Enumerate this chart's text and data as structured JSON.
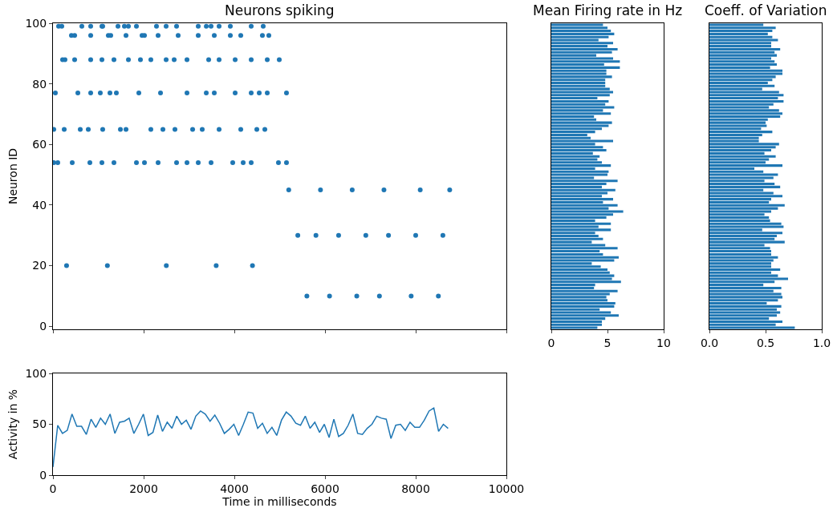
{
  "chart_data": [
    {
      "type": "scatter",
      "title": "Neurons spiking",
      "ylabel": "Neuron ID",
      "color": "#1f77b4",
      "marker": "circle",
      "x": [
        124,
        195,
        637,
        832,
        1080,
        1097,
        1434,
        1575,
        1664,
        1841,
        2283,
        2496,
        2726,
        3204,
        3381,
        3487,
        3664,
        3912,
        4372,
        4637,
        407,
        478,
        832,
        1221,
        1274,
        1611,
        1965,
        2018,
        2319,
        2761,
        3204,
        3558,
        3912,
        4142,
        4619,
        4761,
        212,
        265,
        478,
        832,
        1080,
        1345,
        1664,
        1929,
        2159,
        2496,
        2673,
        2956,
        3434,
        3664,
        4018,
        4372,
        4726,
        4991,
        53,
        549,
        832,
        1044,
        1257,
        1398,
        1894,
        2372,
        2956,
        3381,
        3558,
        4018,
        4372,
        4549,
        4726,
        5150,
        18,
        248,
        602,
        779,
        1097,
        1487,
        1611,
        2159,
        2425,
        2690,
        3080,
        3292,
        3664,
        4142,
        4496,
        4673,
        18,
        106,
        425,
        814,
        1080,
        1345,
        1841,
        2018,
        2319,
        2726,
        2956,
        3204,
        3487,
        3965,
        4195,
        4372,
        4973,
        5150,
        5400,
        5800,
        6300,
        6900,
        7400,
        8000,
        8600,
        5600,
        6100,
        6700,
        7200,
        7900,
        8500,
        5200,
        5900,
        6600,
        7300,
        8100,
        8750,
        300,
        1200,
        2500,
        3600,
        4400
      ],
      "values": [
        99,
        99,
        99,
        99,
        99,
        99,
        99,
        99,
        99,
        99,
        99,
        99,
        99,
        99,
        99,
        99,
        99,
        99,
        99,
        99,
        96,
        96,
        96,
        96,
        96,
        96,
        96,
        96,
        96,
        96,
        96,
        96,
        96,
        96,
        96,
        96,
        88,
        88,
        88,
        88,
        88,
        88,
        88,
        88,
        88,
        88,
        88,
        88,
        88,
        88,
        88,
        88,
        88,
        88,
        77,
        77,
        77,
        77,
        77,
        77,
        77,
        77,
        77,
        77,
        77,
        77,
        77,
        77,
        77,
        77,
        65,
        65,
        65,
        65,
        65,
        65,
        65,
        65,
        65,
        65,
        65,
        65,
        65,
        65,
        65,
        65,
        54,
        54,
        54,
        54,
        54,
        54,
        54,
        54,
        54,
        54,
        54,
        54,
        54,
        54,
        54,
        54,
        54,
        54,
        30,
        30,
        30,
        30,
        30,
        30,
        30,
        10,
        10,
        10,
        10,
        10,
        10,
        45,
        45,
        45,
        45,
        45,
        45,
        20,
        20,
        20,
        20,
        20
      ],
      "xlim": [
        0,
        10000
      ],
      "xticks": [
        {
          "value": 0,
          "label": null
        },
        {
          "value": 2000,
          "label": null
        },
        {
          "value": 4000,
          "label": null
        },
        {
          "value": 6000,
          "label": null
        },
        {
          "value": 8000,
          "label": null
        },
        {
          "value": 10000,
          "label": null
        }
      ],
      "ylim": [
        -1,
        100
      ],
      "yticks": [
        0,
        20,
        40,
        60,
        80,
        100
      ],
      "tick_labels": "y"
    },
    {
      "type": "bar",
      "orientation": "horizontal",
      "title": "Mean Firing rate in Hz",
      "color": "#1f77b4",
      "categories": [
        null,
        null,
        null,
        null,
        null,
        null,
        null,
        null,
        null,
        null,
        null,
        null,
        null,
        null,
        null,
        null,
        null,
        null,
        null,
        null,
        null,
        null,
        null,
        null,
        null,
        null,
        null,
        null,
        null,
        null,
        null,
        null,
        null,
        null,
        null,
        null,
        null,
        null,
        null,
        null,
        null,
        null,
        null,
        null,
        null,
        null,
        null,
        null,
        null,
        null,
        null,
        null,
        null,
        null,
        null,
        null,
        null,
        null,
        null,
        null,
        null,
        null,
        null,
        null,
        null,
        null,
        null,
        null,
        null,
        null,
        null,
        null,
        null,
        null,
        null,
        null,
        null,
        null,
        null,
        null,
        null,
        null,
        null,
        null,
        null,
        null,
        null,
        null,
        null,
        null,
        null,
        null,
        null,
        null,
        null,
        null,
        null,
        null,
        null,
        null
      ],
      "values": [
        4.6,
        5.0,
        5.3,
        5.6,
        5.1,
        4.2,
        5.5,
        5.0,
        5.9,
        5.4,
        4.0,
        5.5,
        6.1,
        4.7,
        6.1,
        4.9,
        4.9,
        5.4,
        4.8,
        4.8,
        4.8,
        5.2,
        5.5,
        5.2,
        4.1,
        5.1,
        4.8,
        5.6,
        4.6,
        5.3,
        3.8,
        4.0,
        5.4,
        5.1,
        4.5,
        3.9,
        3.2,
        3.5,
        5.5,
        3.9,
        4.6,
        4.9,
        3.7,
        4.3,
        4.1,
        4.5,
        5.3,
        3.9,
        5.1,
        5.0,
        3.8,
        5.9,
        4.9,
        4.5,
        5.7,
        5.0,
        4.5,
        5.5,
        4.6,
        5.9,
        5.1,
        6.4,
        5.5,
        4.9,
        3.9,
        5.3,
        4.2,
        5.3,
        3.9,
        4.2,
        4.6,
        3.6,
        4.8,
        5.9,
        4.3,
        4.6,
        6.0,
        5.6,
        3.6,
        4.4,
        5.0,
        5.2,
        5.6,
        5.4,
        6.2,
        3.9,
        3.8,
        5.9,
        5.2,
        4.9,
        5.0,
        5.7,
        5.6,
        4.3,
        5.3,
        6.0,
        4.8,
        4.5,
        4.5,
        4.1
      ],
      "xlim": [
        0,
        10
      ],
      "xticks": [
        0,
        5,
        10
      ],
      "tick_labels": "x"
    },
    {
      "type": "bar",
      "orientation": "horizontal",
      "title": "Coeff. of Variation",
      "color": "#1f77b4",
      "categories": [
        null,
        null,
        null,
        null,
        null,
        null,
        null,
        null,
        null,
        null,
        null,
        null,
        null,
        null,
        null,
        null,
        null,
        null,
        null,
        null,
        null,
        null,
        null,
        null,
        null,
        null,
        null,
        null,
        null,
        null,
        null,
        null,
        null,
        null,
        null,
        null,
        null,
        null,
        null,
        null,
        null,
        null,
        null,
        null,
        null,
        null,
        null,
        null,
        null,
        null,
        null,
        null,
        null,
        null,
        null,
        null,
        null,
        null,
        null,
        null,
        null,
        null,
        null,
        null,
        null,
        null,
        null,
        null,
        null,
        null,
        null,
        null,
        null,
        null,
        null,
        null,
        null,
        null,
        null,
        null,
        null,
        null,
        null,
        null,
        null,
        null,
        null,
        null,
        null,
        null,
        null,
        null,
        null,
        null,
        null,
        null,
        null,
        null,
        null,
        null
      ],
      "values": [
        0.48,
        0.59,
        0.56,
        0.52,
        0.56,
        0.61,
        0.55,
        0.55,
        0.63,
        0.58,
        0.6,
        0.55,
        0.58,
        0.6,
        0.54,
        0.65,
        0.65,
        0.59,
        0.56,
        0.52,
        0.58,
        0.47,
        0.62,
        0.66,
        0.61,
        0.66,
        0.57,
        0.53,
        0.62,
        0.65,
        0.63,
        0.52,
        0.5,
        0.51,
        0.46,
        0.56,
        0.47,
        0.44,
        0.44,
        0.62,
        0.59,
        0.55,
        0.49,
        0.59,
        0.53,
        0.5,
        0.65,
        0.4,
        0.48,
        0.61,
        0.57,
        0.49,
        0.58,
        0.63,
        0.48,
        0.57,
        0.65,
        0.55,
        0.53,
        0.67,
        0.61,
        0.55,
        0.49,
        0.53,
        0.54,
        0.64,
        0.66,
        0.47,
        0.65,
        0.6,
        0.58,
        0.67,
        0.49,
        0.54,
        0.55,
        0.55,
        0.61,
        0.57,
        0.55,
        0.55,
        0.63,
        0.55,
        0.61,
        0.7,
        0.58,
        0.48,
        0.64,
        0.57,
        0.64,
        0.65,
        0.61,
        0.51,
        0.64,
        0.6,
        0.63,
        0.6,
        0.53,
        0.65,
        0.59,
        0.76
      ],
      "xlim": [
        0,
        1
      ],
      "xticks": [
        {
          "value": 0,
          "label": "0.0"
        },
        {
          "value": 0.5,
          "label": "0.5"
        },
        {
          "value": 1,
          "label": "1.0"
        }
      ],
      "tick_labels": "x"
    },
    {
      "type": "line",
      "xlabel": "Time in milliseconds",
      "ylabel": "Activity in %",
      "color": "#1f77b4",
      "marker": "none",
      "line_style": "solid",
      "x": [
        0,
        105,
        210,
        315,
        420,
        525,
        630,
        735,
        840,
        945,
        1050,
        1155,
        1260,
        1365,
        1470,
        1575,
        1680,
        1785,
        1890,
        1995,
        2100,
        2205,
        2310,
        2415,
        2520,
        2625,
        2730,
        2835,
        2940,
        3045,
        3150,
        3255,
        3360,
        3465,
        3570,
        3675,
        3780,
        3885,
        3990,
        4095,
        4200,
        4305,
        4410,
        4515,
        4620,
        4725,
        4830,
        4935,
        5040,
        5145,
        5250,
        5355,
        5460,
        5565,
        5670,
        5775,
        5880,
        5985,
        6090,
        6195,
        6300,
        6405,
        6510,
        6615,
        6720,
        6825,
        6930,
        7035,
        7140,
        7245,
        7350,
        7455,
        7560,
        7665,
        7770,
        7875,
        7980,
        8085,
        8190,
        8295,
        8400,
        8505,
        8610,
        8715
      ],
      "values": [
        8,
        49,
        41,
        44,
        60,
        48,
        48,
        40,
        55,
        47,
        56,
        50,
        60,
        41,
        52,
        53,
        56,
        41,
        50,
        60,
        39,
        42,
        59,
        43,
        52,
        46,
        58,
        50,
        54,
        45,
        58,
        63,
        60,
        53,
        59,
        51,
        41,
        45,
        50,
        39,
        50,
        62,
        61,
        46,
        51,
        41,
        47,
        39,
        54,
        62,
        58,
        51,
        49,
        58,
        46,
        52,
        42,
        50,
        37,
        55,
        38,
        41,
        49,
        60,
        41,
        40,
        46,
        50,
        58,
        56,
        55,
        36,
        49,
        50,
        44,
        52,
        47,
        47,
        54,
        63,
        66,
        43,
        50,
        46
      ],
      "xlim": [
        0,
        10000
      ],
      "xticks": [
        0,
        2000,
        4000,
        6000,
        8000,
        10000
      ],
      "ylim": [
        0,
        100
      ],
      "yticks": [
        0,
        50,
        100
      ]
    }
  ]
}
